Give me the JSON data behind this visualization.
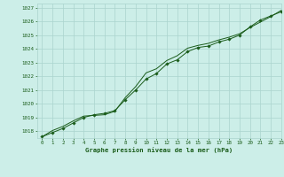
{
  "title": "Graphe pression niveau de la mer (hPa)",
  "background_color": "#cceee8",
  "grid_color": "#aad4ce",
  "line_color": "#1a5c1a",
  "marker_color": "#1a5c1a",
  "xlim": [
    -0.5,
    23
  ],
  "ylim": [
    1017.5,
    1027.3
  ],
  "xticks": [
    0,
    1,
    2,
    3,
    4,
    5,
    6,
    7,
    8,
    9,
    10,
    11,
    12,
    13,
    14,
    15,
    16,
    17,
    18,
    19,
    20,
    21,
    22,
    23
  ],
  "yticks": [
    1018,
    1019,
    1020,
    1021,
    1022,
    1023,
    1024,
    1025,
    1026,
    1027
  ],
  "series1_x": [
    0,
    1,
    2,
    3,
    4,
    5,
    6,
    7,
    8,
    9,
    10,
    11,
    12,
    13,
    14,
    15,
    16,
    17,
    18,
    19,
    20,
    21,
    22,
    23
  ],
  "series1_y": [
    1017.6,
    1017.9,
    1018.2,
    1018.6,
    1019.0,
    1019.2,
    1019.3,
    1019.5,
    1020.3,
    1021.0,
    1021.8,
    1022.2,
    1022.9,
    1023.2,
    1023.8,
    1024.1,
    1024.2,
    1024.5,
    1024.7,
    1025.0,
    1025.6,
    1026.1,
    1026.4,
    1026.7
  ],
  "series2_x": [
    0,
    1,
    2,
    3,
    4,
    5,
    6,
    7,
    8,
    9,
    10,
    11,
    12,
    13,
    14,
    15,
    16,
    17,
    18,
    19,
    20,
    21,
    22,
    23
  ],
  "series2_y": [
    1017.6,
    1018.05,
    1018.35,
    1018.75,
    1019.1,
    1019.15,
    1019.2,
    1019.45,
    1020.45,
    1021.25,
    1022.25,
    1022.55,
    1023.15,
    1023.5,
    1024.05,
    1024.25,
    1024.4,
    1024.65,
    1024.85,
    1025.1,
    1025.55,
    1025.95,
    1026.35,
    1026.8
  ]
}
